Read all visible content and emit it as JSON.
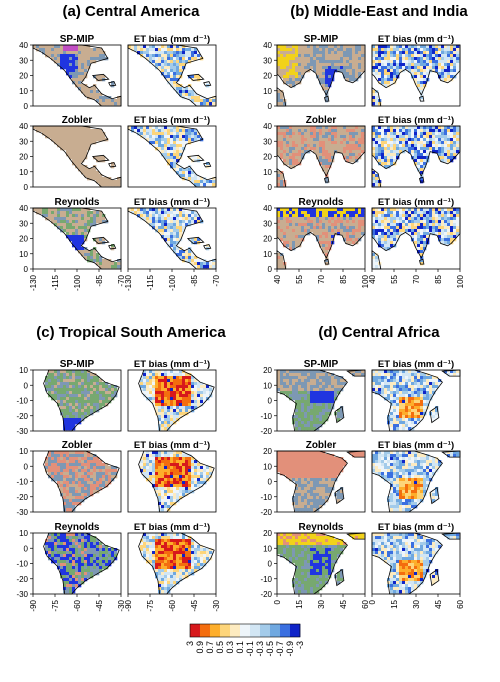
{
  "figure": {
    "panels": [
      {
        "title": "(a) Central America",
        "maps": [
          {
            "row_label": "SP-MIP",
            "kind": "texture"
          },
          {
            "row_label": "ET bias (mm d⁻¹)",
            "kind": "bias"
          },
          {
            "row_label": "Zobler",
            "kind": "texture"
          },
          {
            "row_label": "ET bias (mm d⁻¹)",
            "kind": "bias"
          },
          {
            "row_label": "Reynolds",
            "kind": "texture"
          },
          {
            "row_label": "ET bias (mm d⁻¹)",
            "kind": "bias"
          }
        ],
        "y_ticks": [
          "40",
          "30",
          "20",
          "10",
          "0"
        ],
        "x_ticks": [
          "-130",
          "-115",
          "-100",
          "-85",
          "-70"
        ]
      },
      {
        "title": "(b) Middle-East and India",
        "maps": [
          {
            "row_label": "SP-MIP",
            "kind": "texture"
          },
          {
            "row_label": "ET bias (mm d⁻¹)",
            "kind": "bias"
          },
          {
            "row_label": "Zobler",
            "kind": "texture"
          },
          {
            "row_label": "ET bias (mm d⁻¹)",
            "kind": "bias"
          },
          {
            "row_label": "Reynolds",
            "kind": "texture"
          },
          {
            "row_label": "ET bias (mm d⁻¹)",
            "kind": "bias"
          }
        ],
        "y_ticks": [
          "40",
          "30",
          "20",
          "10",
          "0"
        ],
        "x_ticks": [
          "40",
          "55",
          "70",
          "85",
          "100"
        ]
      },
      {
        "title": "(c) Tropical South America",
        "maps": [
          {
            "row_label": "SP-MIP",
            "kind": "texture"
          },
          {
            "row_label": "ET bias (mm d⁻¹)",
            "kind": "bias"
          },
          {
            "row_label": "Zobler",
            "kind": "texture"
          },
          {
            "row_label": "ET bias (mm d⁻¹)",
            "kind": "bias"
          },
          {
            "row_label": "Reynolds",
            "kind": "texture"
          },
          {
            "row_label": "ET bias (mm d⁻¹)",
            "kind": "bias"
          }
        ],
        "y_ticks": [
          "10",
          "0",
          "-10",
          "-20",
          "-30"
        ],
        "x_ticks": [
          "-90",
          "-75",
          "-60",
          "-45",
          "-30"
        ]
      },
      {
        "title": "(d) Central Africa",
        "maps": [
          {
            "row_label": "SP-MIP",
            "kind": "texture"
          },
          {
            "row_label": "ET bias (mm d⁻¹)",
            "kind": "bias"
          },
          {
            "row_label": "Zobler",
            "kind": "texture"
          },
          {
            "row_label": "ET bias (mm d⁻¹)",
            "kind": "bias"
          },
          {
            "row_label": "Reynolds",
            "kind": "texture"
          },
          {
            "row_label": "ET bias (mm d⁻¹)",
            "kind": "bias"
          }
        ],
        "y_ticks": [
          "20",
          "10",
          "0",
          "-10",
          "-20"
        ],
        "x_ticks": [
          "0",
          "15",
          "30",
          "45",
          "60"
        ]
      }
    ],
    "colorbar": {
      "labels": [
        "3",
        "0.9",
        "0.7",
        "0.5",
        "0.3",
        "0.1",
        "-0.1",
        "-0.3",
        "-0.5",
        "-0.7",
        "-0.9",
        "-3"
      ],
      "colors": [
        "#d7191c",
        "#f46d0e",
        "#fdae2b",
        "#fdd57a",
        "#fdebc0",
        "#eef5fa",
        "#d2e6f4",
        "#a3cbea",
        "#6fa8e0",
        "#3a6fe0",
        "#0f24c8"
      ]
    },
    "texture_colors": {
      "land_tan": "#c8ad91",
      "green": "#77a870",
      "blue_grey": "#7d98b4",
      "salmon": "#e2907a",
      "yellow": "#f2d21a",
      "blue": "#2035e0",
      "magenta": "#c24fc4"
    },
    "ocean_color": "#ffffff"
  }
}
